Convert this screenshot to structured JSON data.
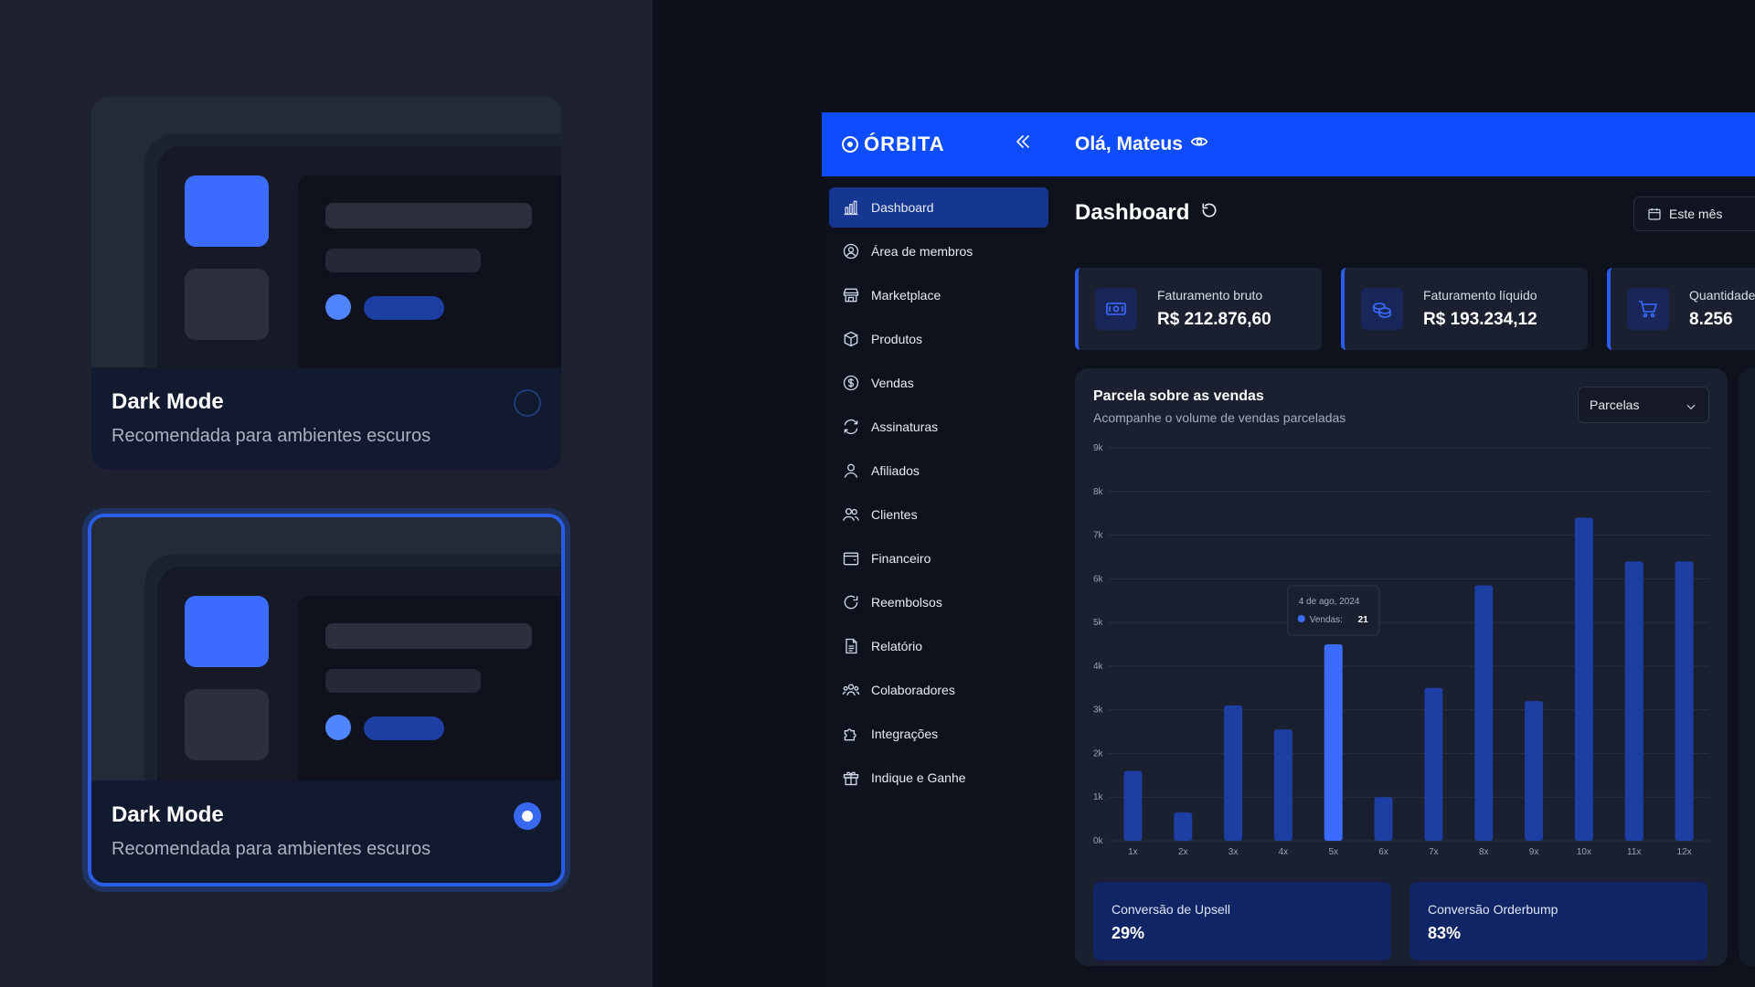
{
  "theme_cards": [
    {
      "title": "Dark Mode",
      "subtitle": "Recomendada para ambientes escuros",
      "selected": false
    },
    {
      "title": "Dark Mode",
      "subtitle": "Recomendada para ambientes escuros",
      "selected": true
    }
  ],
  "app": {
    "logo_text": "ÓRBITA",
    "greeting": "Olá, Mateus",
    "sidebar": [
      {
        "label": "Dashboard",
        "icon": "bar-chart-icon",
        "active": true
      },
      {
        "label": "Área de membros",
        "icon": "user-circle-icon"
      },
      {
        "label": "Marketplace",
        "icon": "store-icon"
      },
      {
        "label": "Produtos",
        "icon": "box-icon"
      },
      {
        "label": "Vendas",
        "icon": "dollar-circle-icon"
      },
      {
        "label": "Assinaturas",
        "icon": "refresh-icon"
      },
      {
        "label": "Afiliados",
        "icon": "user-icon"
      },
      {
        "label": "Clientes",
        "icon": "users-icon"
      },
      {
        "label": "Financeiro",
        "icon": "wallet-icon"
      },
      {
        "label": "Reembolsos",
        "icon": "rotate-icon"
      },
      {
        "label": "Relatório",
        "icon": "document-icon"
      },
      {
        "label": "Colaboradores",
        "icon": "team-icon"
      },
      {
        "label": "Integrações",
        "icon": "puzzle-icon"
      },
      {
        "label": "Indique e Ganhe",
        "icon": "gift-icon"
      }
    ],
    "page_title": "Dashboard",
    "date_filter": "Este mês",
    "kpis": [
      {
        "label": "Faturamento bruto",
        "value": "R$ 212.876,60",
        "icon": "cash-icon"
      },
      {
        "label": "Faturamento líquido",
        "value": "R$ 193.234,12",
        "icon": "coins-icon"
      },
      {
        "label": "Quantidade",
        "value": "8.256",
        "icon": "cart-icon"
      }
    ],
    "chart_card": {
      "title": "Parcela sobre as vendas",
      "subtitle": "Acompanhe o volume de vendas parceladas",
      "select_value": "Parcelas"
    },
    "tooltip": {
      "date": "4 de ago, 2024",
      "series": "Vendas:",
      "value": "21"
    },
    "conversions": [
      {
        "label": "Conversão de Upsell",
        "value": "29%"
      },
      {
        "label": "Conversão Orderbump",
        "value": "83%"
      }
    ]
  },
  "colors": {
    "accent": "#0d4cff",
    "bar": "#1d3ea3",
    "bar_highlight": "#3c6cff",
    "background": "#0e121d"
  },
  "chart_data": {
    "type": "bar",
    "categories": [
      "1x",
      "2x",
      "3x",
      "4x",
      "5x",
      "6x",
      "7x",
      "8x",
      "9x",
      "10x",
      "11x",
      "12x"
    ],
    "values": [
      1600,
      650,
      3100,
      2550,
      4500,
      1000,
      3500,
      5850,
      3200,
      7400,
      6400,
      6400
    ],
    "ylim": [
      0,
      9000
    ],
    "yticks": [
      "0k",
      "1k",
      "2k",
      "3k",
      "4k",
      "5k",
      "6k",
      "7k",
      "8k",
      "9k"
    ],
    "highlight_index": 4,
    "grid": true
  }
}
